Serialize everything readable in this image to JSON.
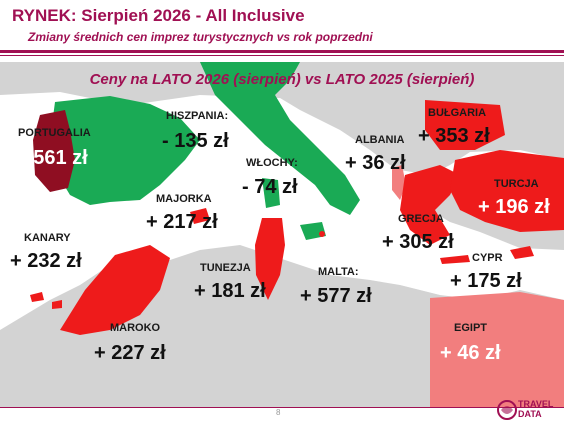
{
  "header": {
    "title": "RYNEK: Sierpień 2026 - All Inclusive",
    "subtitle": "Zmiany średnich cen imprez turystycznych vs rok poprzedni"
  },
  "colors": {
    "brand": "#a01053",
    "increase": "#ee1b1b",
    "decrease": "#1aaa55",
    "egypt": "#f27e7e",
    "portugal": "#8f0e22",
    "land": "#d3d3d3",
    "sea": "#ffffff"
  },
  "chart_data": {
    "type": "map",
    "title": "Ceny na LATO 2026 (sierpień) vs  LATO 2025 (sierpień)",
    "unit": "zł",
    "regions": [
      {
        "name": "PORTUGALIA",
        "change": 561,
        "label": "+ 561 zł"
      },
      {
        "name": "HISZPANIA:",
        "change": -135,
        "label": "- 135 zł"
      },
      {
        "name": "WŁOCHY:",
        "change": -74,
        "label": "- 74 zł"
      },
      {
        "name": "ALBANIA",
        "change": 36,
        "label": "+ 36 zł"
      },
      {
        "name": "BUŁGARIA",
        "change": 353,
        "label": "+ 353 zł"
      },
      {
        "name": "MAJORKA",
        "change": 217,
        "label": "+ 217 zł"
      },
      {
        "name": "TURCJA",
        "change": 196,
        "label": "+ 196 zł"
      },
      {
        "name": "GRECJA",
        "change": 305,
        "label": "+ 305 zł"
      },
      {
        "name": "KANARY",
        "change": 232,
        "label": "+ 232 zł"
      },
      {
        "name": "TUNEZJA",
        "change": 181,
        "label": "+ 181 zł"
      },
      {
        "name": "MALTA:",
        "change": 577,
        "label": "+ 577 zł"
      },
      {
        "name": "CYPR",
        "change": 175,
        "label": "+ 175 zł"
      },
      {
        "name": "MAROKO",
        "change": 227,
        "label": "+ 227 zł"
      },
      {
        "name": "EGIPT",
        "change": 46,
        "label": "+ 46 zł"
      }
    ]
  },
  "footer": {
    "page_number": "8",
    "logo_line1": "TRAVEL",
    "logo_line2": "DATA"
  }
}
